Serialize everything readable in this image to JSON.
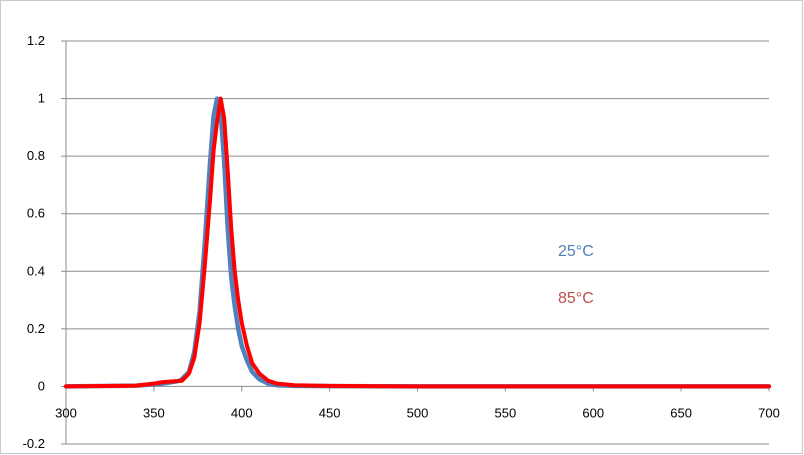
{
  "chart_data": {
    "type": "line",
    "title": "",
    "xlabel": "",
    "ylabel": "",
    "xlim": [
      300,
      700
    ],
    "ylim": [
      -0.2,
      1.2
    ],
    "x_ticks": [
      300,
      350,
      400,
      450,
      500,
      550,
      600,
      650,
      700
    ],
    "x_tick_labels": [
      "300",
      "350",
      "400",
      "450",
      "500",
      "550",
      "600",
      "650",
      "700"
    ],
    "y_ticks": [
      -0.2,
      0,
      0.2,
      0.4,
      0.6,
      0.8,
      1,
      1.2
    ],
    "y_tick_labels": [
      "-0.2",
      "0",
      "0.2",
      "0.4",
      "0.6",
      "0.8",
      "1",
      "1.2"
    ],
    "grid": "horizontal",
    "annotations": [
      {
        "text": "25°C",
        "color": "#4f81bd"
      },
      {
        "text": "85°C",
        "color": "#c0504d"
      }
    ],
    "series": [
      {
        "name": "25°C",
        "color": "#4f81bd",
        "points": [
          [
            300,
            0
          ],
          [
            340,
            0.003
          ],
          [
            355,
            0.01
          ],
          [
            365,
            0.02
          ],
          [
            370,
            0.05
          ],
          [
            373,
            0.12
          ],
          [
            376,
            0.26
          ],
          [
            379,
            0.5
          ],
          [
            382,
            0.78
          ],
          [
            384,
            0.94
          ],
          [
            386,
            1.0
          ],
          [
            388,
            0.95
          ],
          [
            390,
            0.78
          ],
          [
            392,
            0.55
          ],
          [
            394,
            0.38
          ],
          [
            396,
            0.28
          ],
          [
            398,
            0.2
          ],
          [
            400,
            0.14
          ],
          [
            403,
            0.09
          ],
          [
            406,
            0.05
          ],
          [
            410,
            0.025
          ],
          [
            415,
            0.01
          ],
          [
            420,
            0.004
          ],
          [
            430,
            0.002
          ],
          [
            450,
            0.001
          ],
          [
            500,
            0
          ],
          [
            600,
            0
          ],
          [
            700,
            0
          ]
        ]
      },
      {
        "name": "85°C",
        "color": "#ff0000",
        "points": [
          [
            300,
            0
          ],
          [
            340,
            0.003
          ],
          [
            350,
            0.01
          ],
          [
            355,
            0.015
          ],
          [
            360,
            0.017
          ],
          [
            366,
            0.02
          ],
          [
            370,
            0.045
          ],
          [
            373,
            0.1
          ],
          [
            376,
            0.22
          ],
          [
            379,
            0.42
          ],
          [
            382,
            0.65
          ],
          [
            384,
            0.82
          ],
          [
            386,
            0.92
          ],
          [
            388,
            1.0
          ],
          [
            390,
            0.93
          ],
          [
            392,
            0.75
          ],
          [
            394,
            0.55
          ],
          [
            396,
            0.4
          ],
          [
            398,
            0.3
          ],
          [
            400,
            0.22
          ],
          [
            403,
            0.14
          ],
          [
            406,
            0.08
          ],
          [
            410,
            0.045
          ],
          [
            415,
            0.02
          ],
          [
            420,
            0.01
          ],
          [
            430,
            0.004
          ],
          [
            450,
            0.002
          ],
          [
            500,
            0
          ],
          [
            600,
            0
          ],
          [
            700,
            0
          ]
        ]
      }
    ]
  }
}
